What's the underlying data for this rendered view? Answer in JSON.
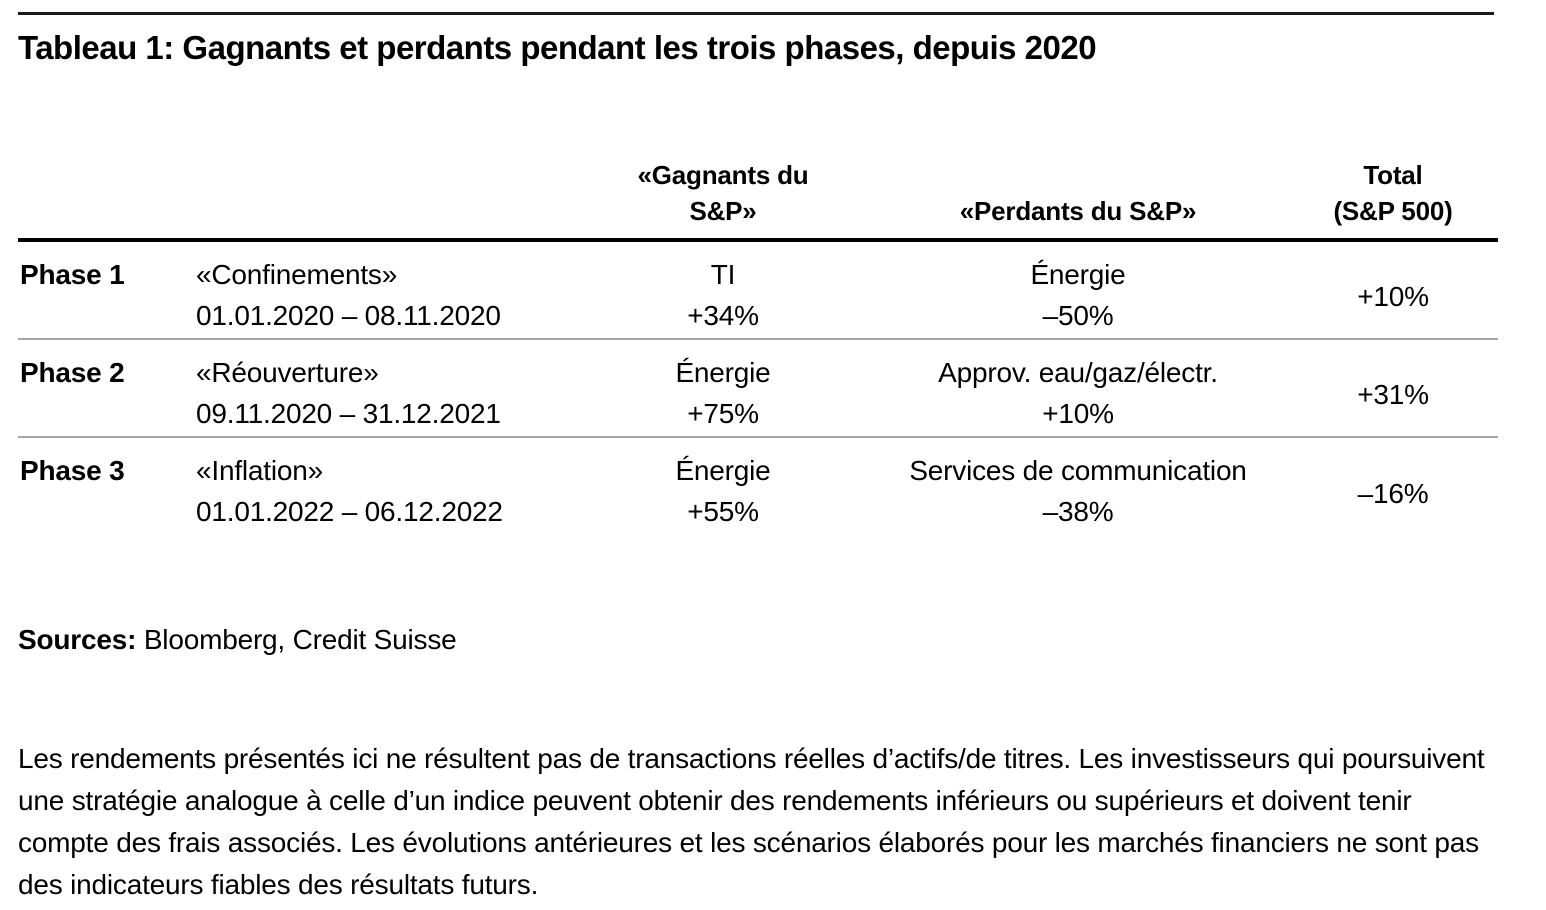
{
  "page": {
    "title": "Tableau 1: Gagnants et perdants pendant les trois phases, depuis 2020"
  },
  "table": {
    "column_headers": {
      "winners": "«Gagnants du S&P»",
      "losers": "«Perdants du S&P»",
      "total_line1": "Total",
      "total_line2": "(S&P 500)"
    },
    "rows": [
      {
        "phase": "Phase 1",
        "name": "«Confinements»",
        "period": "01.01.2020 – 08.11.2020",
        "winner_sector": "TI",
        "winner_return": "+34%",
        "loser_sector": "Énergie",
        "loser_return": "–50%",
        "total": "+10%"
      },
      {
        "phase": "Phase 2",
        "name": "«Réouverture»",
        "period": "09.11.2020 – 31.12.2021",
        "winner_sector": "Énergie",
        "winner_return": "+75%",
        "loser_sector": "Approv. eau/gaz/électr.",
        "loser_return": "+10%",
        "total": "+31%"
      },
      {
        "phase": "Phase 3",
        "name": "«Inflation»",
        "period": "01.01.2022 – 06.12.2022",
        "winner_sector": "Énergie",
        "winner_return": "+55%",
        "loser_sector": "Services de communication",
        "loser_return": "–38%",
        "total": "–16%"
      }
    ]
  },
  "sources": {
    "label": "Sources:",
    "value": "Bloomberg, Credit Suisse"
  },
  "disclaimer": "Les rendements présentés ici ne résultent pas de transactions réelles d’actifs/de titres. Les investisseurs qui poursuivent une stratégie analogue à celle d’un indice peuvent obtenir des rendements inférieurs ou supérieurs et doivent tenir compte des frais associés. Les évolutions antérieures et les scénarios élaborés pour les marchés financiers ne sont pas des indicateurs fiables des résultats futurs.",
  "colors": {
    "text": "#000000",
    "top_rule": "#1a1a1a",
    "header_rule": "#000000",
    "row_separator": "#a6a6ad"
  }
}
